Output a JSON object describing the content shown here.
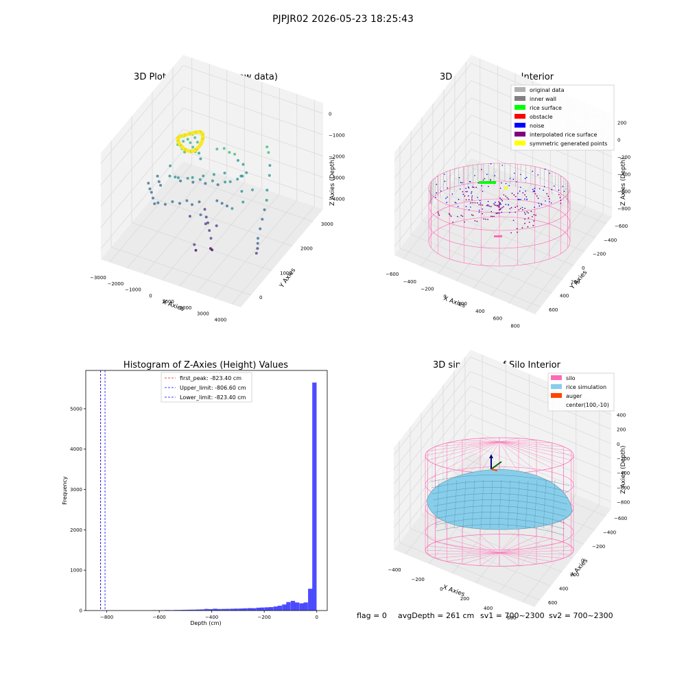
{
  "suptitle": "PJPJR02 2026-05-23 18:25:43",
  "footer": {
    "flag": "flag = 0",
    "avg": "avgDepth = 261 cm",
    "sv1": "sv1 = 700~2300",
    "sv2": "sv2 = 700~2300"
  },
  "colors": {
    "grid": "#d8d8d8",
    "pane": "#f2f2f2",
    "pane_side": "#ebebeb",
    "hist": "#0000ff",
    "red": "#ff0000",
    "blue": "#0000ff",
    "pink": "#ff69b4",
    "skyblue": "#87ceeb",
    "orange": "#ff4500",
    "gray_light": "#b0b0b0",
    "gray_dark": "#808080",
    "green": "#00ff00",
    "purple": "#800080",
    "yellow": "#ffff00"
  },
  "chart_data": [
    {
      "type": "scatter",
      "title": "3D Plot of Silo Interior(row data)",
      "xlabel": "X Axies",
      "ylabel": "Y Axies",
      "zlabel": "Z Axies (Depth)",
      "xticks": [
        "−3000",
        "−2000",
        "−1000",
        "0",
        "1000",
        "2000",
        "3000",
        "4000"
      ],
      "yticks": [
        "0",
        "1000",
        "2000",
        "3000"
      ],
      "zticks": [
        "0",
        "−1000",
        "−2000",
        "−3000",
        "−4000"
      ],
      "xlim": [
        -3500,
        4500
      ],
      "ylim": [
        -500,
        3700
      ],
      "zlim": [
        -4800,
        200
      ],
      "points": [
        [
          -1800,
          2200,
          -1500
        ],
        [
          -1600,
          2300,
          -1450
        ],
        [
          -1400,
          2300,
          -1400
        ],
        [
          -1200,
          2250,
          -1450
        ],
        [
          -1000,
          2200,
          -1550
        ],
        [
          -1700,
          2100,
          -1600
        ],
        [
          -1500,
          2150,
          -1500
        ],
        [
          -1300,
          2100,
          -1550
        ],
        [
          -1100,
          2050,
          -1650
        ],
        [
          -900,
          2000,
          -1750
        ],
        [
          -1900,
          2000,
          -1700
        ],
        [
          -1600,
          1950,
          -1750
        ],
        [
          -1400,
          1900,
          -1800
        ],
        [
          -800,
          2100,
          -1900
        ],
        [
          -600,
          2000,
          -2000
        ],
        [
          -2500,
          1500,
          -2800
        ],
        [
          -2300,
          1400,
          -2900
        ],
        [
          -2100,
          1300,
          -2900
        ],
        [
          -2800,
          1300,
          -3000
        ],
        [
          -2600,
          1200,
          -3100
        ],
        [
          -2400,
          1100,
          -3100
        ],
        [
          -2200,
          1000,
          -3200
        ],
        [
          -2000,
          900,
          -3300
        ],
        [
          -1800,
          900,
          -3200
        ],
        [
          -1500,
          1000,
          -3300
        ],
        [
          -1200,
          1100,
          -3200
        ],
        [
          -900,
          1200,
          -3300
        ],
        [
          -600,
          1300,
          -3200
        ],
        [
          -300,
          1300,
          -3300
        ],
        [
          0,
          1400,
          -3200
        ],
        [
          -1600,
          1600,
          -2700
        ],
        [
          -1300,
          1600,
          -2800
        ],
        [
          -1000,
          1700,
          -2700
        ],
        [
          -700,
          1700,
          -2800
        ],
        [
          -400,
          1800,
          -2700
        ],
        [
          -100,
          1800,
          -2800
        ],
        [
          200,
          1900,
          -2700
        ],
        [
          500,
          1900,
          -2800
        ],
        [
          800,
          2000,
          -2700
        ],
        [
          1100,
          2000,
          -2600
        ],
        [
          1400,
          2100,
          -2500
        ],
        [
          1600,
          2100,
          -2300
        ],
        [
          1800,
          2200,
          -2200
        ],
        [
          1500,
          2300,
          -2000
        ],
        [
          1200,
          2300,
          -1900
        ],
        [
          900,
          2400,
          -1800
        ],
        [
          600,
          2400,
          -1800
        ],
        [
          300,
          2400,
          -1700
        ],
        [
          0,
          2300,
          -1700
        ],
        [
          2300,
          2800,
          -1500
        ],
        [
          2500,
          2700,
          -1600
        ],
        [
          2800,
          2500,
          -1900
        ],
        [
          3000,
          2300,
          -2100
        ],
        [
          3200,
          2000,
          -2400
        ],
        [
          3400,
          1800,
          -2600
        ],
        [
          3500,
          1600,
          -2800
        ],
        [
          3600,
          1400,
          -3000
        ],
        [
          3700,
          1200,
          -3200
        ],
        [
          3800,
          1000,
          -3400
        ],
        [
          3900,
          900,
          -3500
        ],
        [
          4000,
          800,
          -3600
        ],
        [
          4050,
          700,
          -3700
        ],
        [
          200,
          1500,
          -3600
        ],
        [
          400,
          1400,
          -3800
        ],
        [
          600,
          1300,
          -3900
        ],
        [
          800,
          1200,
          -4100
        ],
        [
          1000,
          1100,
          -4300
        ],
        [
          1200,
          900,
          -4500
        ],
        [
          1400,
          800,
          -4400
        ],
        [
          1100,
          1300,
          -3900
        ],
        [
          700,
          1100,
          -3700
        ],
        [
          300,
          1200,
          -3500
        ],
        [
          -200,
          1100,
          -3600
        ],
        [
          500,
          700,
          -4300
        ],
        [
          700,
          600,
          -4400
        ],
        [
          -2000,
          1700,
          -2400
        ],
        [
          -1800,
          1500,
          -2600
        ],
        [
          -1200,
          1400,
          -2400
        ],
        [
          -500,
          1500,
          -2300
        ],
        [
          0,
          1600,
          -2200
        ],
        [
          500,
          1700,
          -2100
        ],
        [
          1000,
          1800,
          -2000
        ],
        [
          1900,
          1900,
          -2000
        ],
        [
          2200,
          1600,
          -2300
        ],
        [
          2500,
          1400,
          -2500
        ],
        [
          2100,
          1200,
          -2700
        ],
        [
          1700,
          1300,
          -2800
        ],
        [
          1300,
          1400,
          -2900
        ],
        [
          900,
          1500,
          -3000
        ],
        [
          2700,
          1700,
          -2200
        ]
      ]
    },
    {
      "type": "scatter",
      "title": "3D classify of Silo Interior",
      "xlabel": "X Axies",
      "ylabel": "Y Axies",
      "zlabel": "Z Axies (Depth)",
      "xticks": [
        "−600",
        "−400",
        "−200",
        "0",
        "200",
        "400",
        "600",
        "800"
      ],
      "yticks": [
        "−600",
        "−400",
        "−200",
        "0",
        "200",
        "400",
        "600"
      ],
      "zticks": [
        "200",
        "0",
        "−200",
        "−400",
        "−600",
        "−800"
      ],
      "xlim": [
        -700,
        850
      ],
      "ylim": [
        -700,
        700
      ],
      "zlim": [
        -950,
        350
      ],
      "legend": [
        {
          "label": "original data",
          "color": "#b0b0b0"
        },
        {
          "label": "inner wall",
          "color": "#808080"
        },
        {
          "label": "rice surface",
          "color": "#00ff00"
        },
        {
          "label": "obstacle",
          "color": "#ff0000"
        },
        {
          "label": "noise",
          "color": "#0000ff"
        },
        {
          "label": "interpolated rice surface",
          "color": "#800080"
        },
        {
          "label": "symmetric generated points",
          "color": "#ffff00"
        }
      ]
    },
    {
      "type": "bar",
      "title": "Histogram of Z-Axies (Height) Values",
      "xlabel": "Depth (cm)",
      "ylabel": "Frequency",
      "xlim": [
        -880,
        40
      ],
      "ylim": [
        0,
        5950
      ],
      "xticks": [
        -800,
        -600,
        -400,
        -200,
        0
      ],
      "xtick_labels": [
        "−800",
        "−600",
        "−400",
        "−200",
        "0"
      ],
      "yticks": [
        0,
        1000,
        2000,
        3000,
        4000,
        5000
      ],
      "bin_width": 16.5,
      "bins_start": [
        -627,
        -611,
        -594,
        -578,
        -561,
        -545,
        -528,
        -512,
        -495,
        -479,
        -462,
        -446,
        -429,
        -413,
        -396,
        -380,
        -363,
        -347,
        -330,
        -314,
        -297,
        -281,
        -264,
        -248,
        -231,
        -215,
        -198,
        -182,
        -165,
        -149,
        -132,
        -116,
        -99,
        -83,
        -66,
        -50,
        -33,
        -17
      ],
      "values": [
        8,
        5,
        7,
        12,
        10,
        14,
        15,
        18,
        20,
        22,
        25,
        28,
        40,
        35,
        45,
        38,
        40,
        42,
        45,
        48,
        50,
        55,
        60,
        58,
        70,
        75,
        80,
        85,
        100,
        120,
        150,
        210,
        240,
        200,
        180,
        200,
        540,
        5650
      ],
      "vlines": [
        {
          "x": -823.4,
          "label": "first_peak: -823.40 cm",
          "color": "#ff0000"
        },
        {
          "x": -806.6,
          "label": "Upper_limit: -806.60 cm",
          "color": "#0000ff"
        },
        {
          "x": -823.4,
          "label": "Lower_limit: -823.40 cm",
          "color": "#0000ff"
        }
      ]
    },
    {
      "type": "area",
      "title": "3D simulation of Silo Interior",
      "xlabel": "X Axies",
      "ylabel": "Y Axies",
      "zlabel": "Z Axies (Depth)",
      "xticks": [
        "−400",
        "−200",
        "0",
        "200",
        "400",
        "600"
      ],
      "yticks": [
        "−600",
        "−400",
        "−200",
        "0",
        "200",
        "400",
        "600"
      ],
      "zticks": [
        "400",
        "200",
        "0",
        "−200",
        "−400",
        "−600",
        "−800"
      ],
      "xlim": [
        -550,
        750
      ],
      "ylim": [
        -700,
        700
      ],
      "zlim": [
        -950,
        500
      ],
      "legend": [
        {
          "label": "silo",
          "color": "#ff69b4"
        },
        {
          "label": "rice simulation",
          "color": "#87ceeb"
        },
        {
          "label": "auger",
          "color": "#ff4500"
        },
        {
          "label": "center(100,-10)",
          "color": ""
        }
      ]
    }
  ]
}
